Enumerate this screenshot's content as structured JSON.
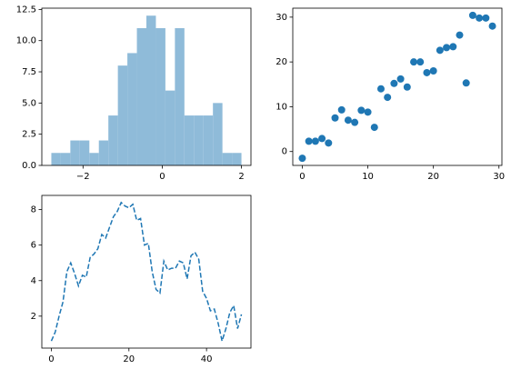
{
  "chart_data": [
    {
      "type": "histogram",
      "color": "#8fbbd9",
      "bins": [
        -2.8,
        -2.56,
        -2.32,
        -2.08,
        -1.84,
        -1.6,
        -1.36,
        -1.12,
        -0.88,
        -0.64,
        -0.4,
        -0.16,
        0.08,
        0.32,
        0.56,
        0.8,
        1.04,
        1.28,
        1.52,
        1.76,
        2.0
      ],
      "counts": [
        1,
        1,
        2,
        2,
        1,
        2,
        4,
        8,
        9,
        11,
        12,
        11,
        6,
        11,
        4,
        4,
        4,
        5,
        1,
        1
      ],
      "xlim": [
        -3.04,
        2.24
      ],
      "xticks": [
        {
          "value": -2,
          "label": "−2"
        },
        0,
        2
      ],
      "ylim": [
        0,
        12.6
      ],
      "yticks": [
        {
          "value": 0,
          "label": "0.0"
        },
        {
          "value": 2.5,
          "label": "2.5"
        },
        {
          "value": 5,
          "label": "5.0"
        },
        {
          "value": 7.5,
          "label": "7.5"
        },
        {
          "value": 10,
          "label": "10.0"
        },
        {
          "value": 12.5,
          "label": "12.5"
        }
      ]
    },
    {
      "type": "scatter",
      "color": "#1f77b4",
      "x": [
        0,
        1,
        2,
        3,
        4,
        5,
        6,
        7,
        8,
        9,
        10,
        11,
        12,
        13,
        14,
        15,
        16,
        17,
        18,
        19,
        20,
        21,
        22,
        23,
        24,
        25,
        26,
        27,
        28,
        29
      ],
      "values": [
        -1.5,
        2.3,
        2.3,
        2.9,
        1.9,
        7.5,
        9.3,
        7.0,
        6.5,
        9.2,
        8.8,
        5.4,
        14,
        12.1,
        15.2,
        16.2,
        14.4,
        20,
        20,
        17.6,
        18,
        22.6,
        23.2,
        23.4,
        26,
        15.3,
        30.4,
        29.8,
        29.8,
        28
      ],
      "xlim": [
        -1.45,
        30.45
      ],
      "xticks": [
        0,
        10,
        20,
        30
      ],
      "ylim": [
        -3.1,
        32
      ],
      "yticks": [
        0,
        10,
        20,
        30
      ]
    },
    {
      "type": "line",
      "color": "#1f77b4",
      "linestyle": "dashed",
      "x": [
        0,
        1,
        2,
        3,
        4,
        5,
        6,
        7,
        8,
        9,
        10,
        11,
        12,
        13,
        14,
        15,
        16,
        17,
        18,
        19,
        20,
        21,
        22,
        23,
        24,
        25,
        26,
        27,
        28,
        29,
        30,
        31,
        32,
        33,
        34,
        35,
        36,
        37,
        38,
        39,
        40,
        41,
        42,
        43,
        44,
        45,
        46,
        47,
        48,
        49
      ],
      "values": [
        0.6,
        1.1,
        2.0,
        2.8,
        4.5,
        5.0,
        4.4,
        3.7,
        4.3,
        4.2,
        5.3,
        5.5,
        5.8,
        6.6,
        6.4,
        7.0,
        7.6,
        7.9,
        8.4,
        8.2,
        8.1,
        8.3,
        7.4,
        7.5,
        6.0,
        6.1,
        4.5,
        3.5,
        3.3,
        5.1,
        4.6,
        4.7,
        4.7,
        5.1,
        5.0,
        4.1,
        5.4,
        5.6,
        5.2,
        3.4,
        3.0,
        2.3,
        2.4,
        1.6,
        0.6,
        1.3,
        2.2,
        2.6,
        1.3,
        2.1
      ],
      "xlim": [
        -2.45,
        51.45
      ],
      "xticks": [
        0,
        20,
        40
      ],
      "ylim": [
        0.2,
        8.8
      ],
      "yticks": [
        2,
        4,
        6,
        8
      ]
    }
  ]
}
